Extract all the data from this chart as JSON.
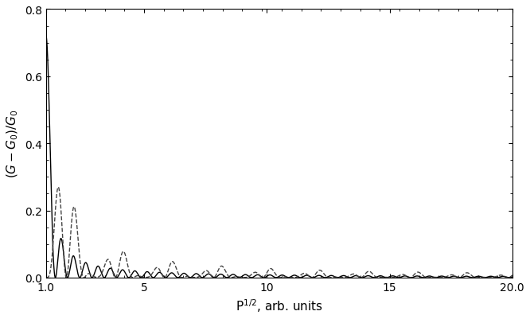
{
  "xmin": 1.0,
  "xmax": 20.0,
  "ymin": 0.0,
  "ymax": 0.8,
  "xlabel": "P$^{1/2}$, arb. units",
  "ylabel": "$(G - G_0)/G_0$",
  "solid_color": "#000000",
  "dashed_color": "#444444",
  "linewidth_solid": 1.0,
  "linewidth_dashed": 1.0,
  "num_points": 8000,
  "yticks": [
    0.0,
    0.2,
    0.4,
    0.6,
    0.8
  ],
  "xtick_positions": [
    1.0,
    5.0,
    10.0,
    15.0,
    20.0
  ],
  "xtick_labels": [
    "1.0",
    "5",
    "10",
    "15",
    "20.0"
  ],
  "A1_eq_A2_amplitude": 0.72,
  "A1_half_A2_amplitude": 0.27,
  "alpha_solid": 6.2831853,
  "alpha_dashed": 4.1887902,
  "figwidth": 6.66,
  "figheight": 4.02,
  "dpi": 100
}
